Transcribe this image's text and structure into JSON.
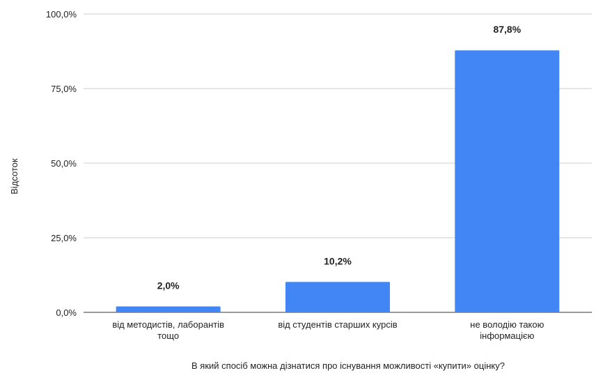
{
  "chart_data": {
    "type": "bar",
    "title": "",
    "xlabel": "В який спосіб можна дізнатися про існування можливості «купити» оцінку?",
    "ylabel": "Відсоток",
    "categories": [
      [
        "від методистів, лаборантів",
        "тощо"
      ],
      [
        "від студентів старших курсів"
      ],
      [
        "не володію такою",
        "інформацією"
      ]
    ],
    "values": [
      2.0,
      10.2,
      87.8
    ],
    "data_labels": [
      "2,0%",
      "10,2%",
      "87,8%"
    ],
    "ylim": [
      0,
      100
    ],
    "yticks": [
      0,
      25,
      50,
      75,
      100
    ],
    "ytick_labels": [
      "0,0%",
      "25,0%",
      "50,0%",
      "75,0%",
      "100,0%"
    ],
    "grid": true,
    "bar_color": "#4285f4",
    "grid_color": "#cccccc"
  }
}
